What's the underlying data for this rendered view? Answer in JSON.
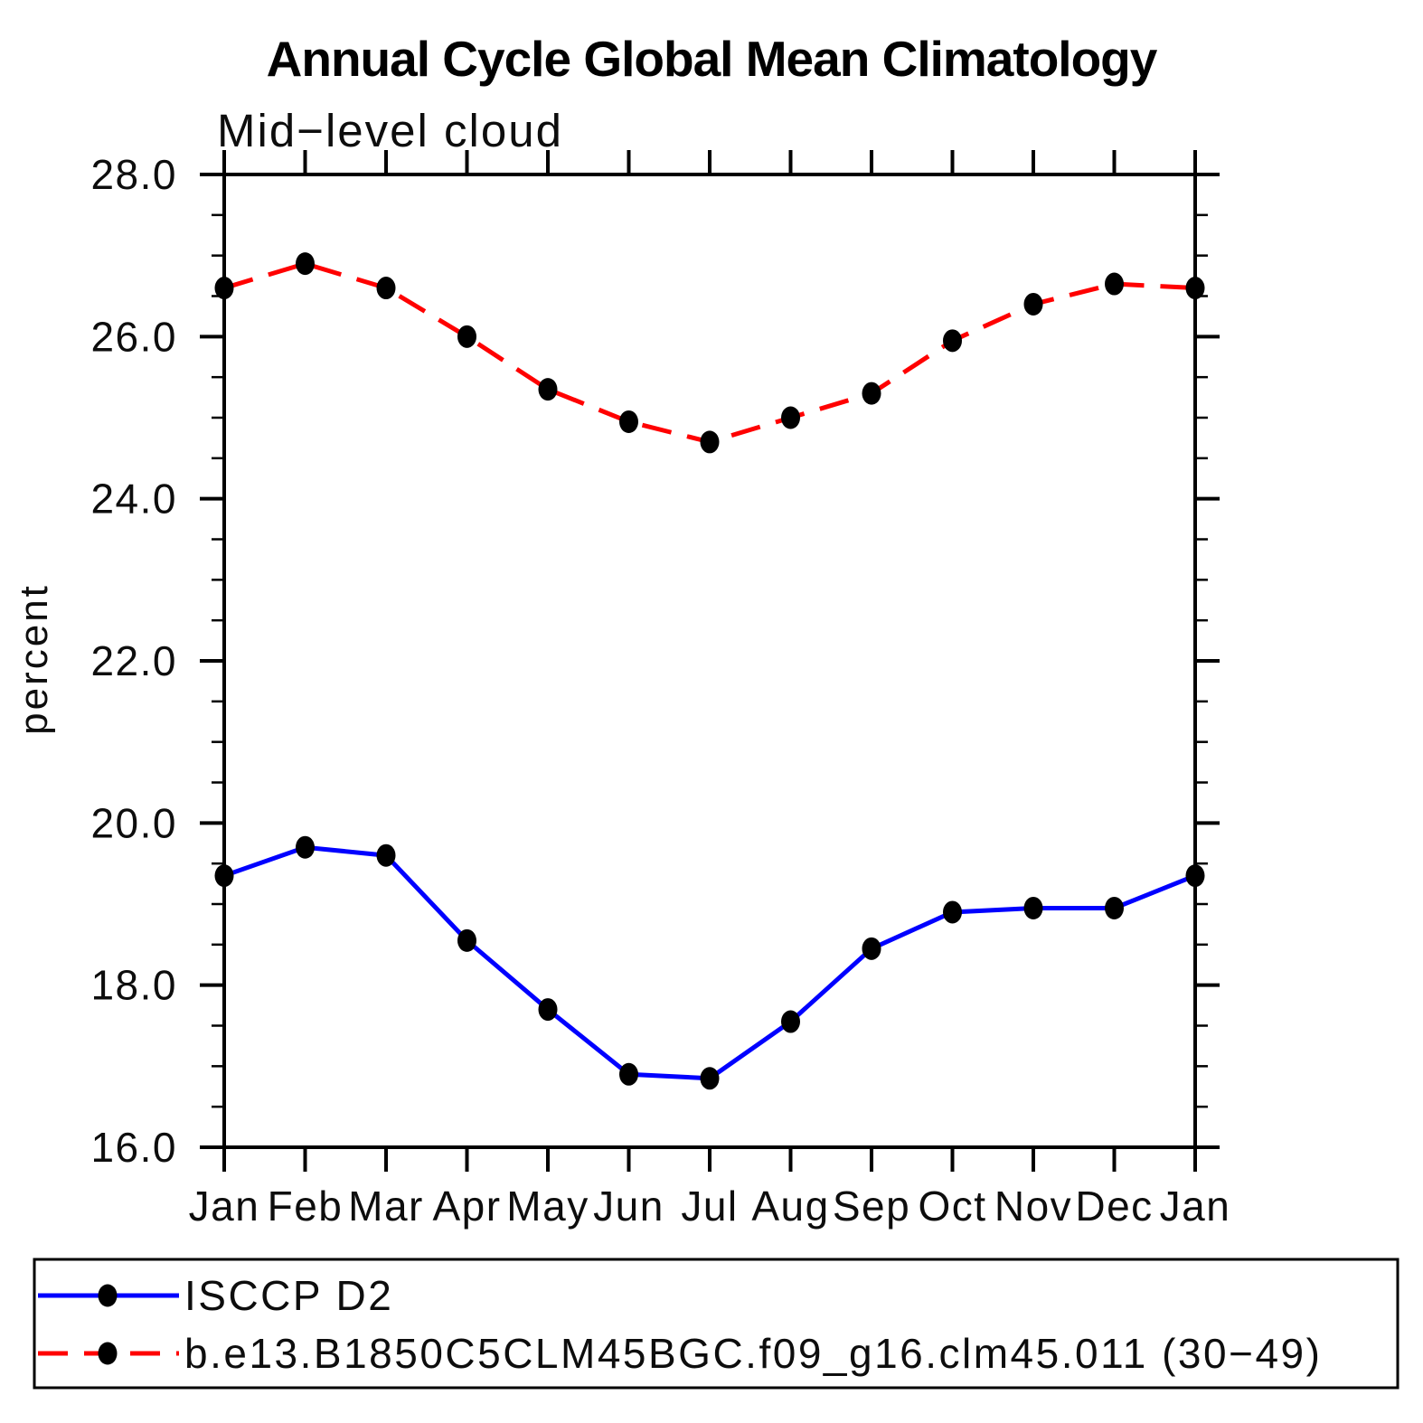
{
  "title": "Annual Cycle Global Mean Climatology",
  "colors": {
    "background": "#ffffff",
    "axis": "#000000",
    "text": "#0d0d0d",
    "marker": "#000000",
    "series_blue": "#0000ff",
    "series_red": "#ff0000"
  },
  "chart_data": {
    "type": "line",
    "title": "Annual Cycle Global Mean Climatology",
    "subtitle": "Mid−level cloud",
    "ylabel": "percent",
    "xlabel": "",
    "categories": [
      "Jan",
      "Feb",
      "Mar",
      "Apr",
      "May",
      "Jun",
      "Jul",
      "Aug",
      "Sep",
      "Oct",
      "Nov",
      "Dec",
      "Jan"
    ],
    "ylim": [
      16.0,
      28.0
    ],
    "ytick_major": [
      16.0,
      18.0,
      20.0,
      22.0,
      24.0,
      26.0,
      28.0
    ],
    "ytick_labels": [
      "16.0",
      "18.0",
      "20.0",
      "22.0",
      "24.0",
      "26.0",
      "28.0"
    ],
    "ytick_minor_step": 0.5,
    "grid": false,
    "legend_position": "bottom-box",
    "series": [
      {
        "name": "ISCCP D2",
        "color": "#0000ff",
        "line_style": "solid",
        "marker": "filled-circle",
        "marker_color": "#000000",
        "values": [
          19.35,
          19.7,
          19.6,
          18.55,
          17.7,
          16.9,
          16.85,
          17.55,
          18.45,
          18.9,
          18.95,
          18.95,
          19.35
        ]
      },
      {
        "name": "b.e13.B1850C5CLM45BGC.f09_g16.clm45.011 (30−49)",
        "color": "#ff0000",
        "line_style": "dashed",
        "marker": "filled-circle",
        "marker_color": "#000000",
        "values": [
          26.6,
          26.9,
          26.6,
          26.0,
          25.35,
          24.95,
          24.7,
          25.0,
          25.3,
          25.95,
          26.4,
          26.65,
          26.6
        ]
      }
    ]
  }
}
